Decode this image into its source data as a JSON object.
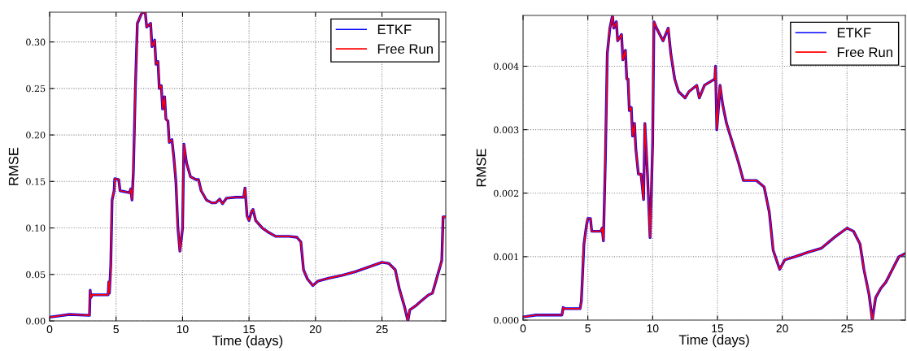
{
  "chart_data": [
    {
      "type": "line",
      "xlabel": "Time (days)",
      "ylabel": "RMSE",
      "xlim": [
        0,
        29.8
      ],
      "ylim": [
        0,
        0.332
      ],
      "xticks": [
        0,
        5,
        10,
        15,
        20,
        25
      ],
      "yticks": [
        {
          "value": 0,
          "label": "0.00"
        },
        {
          "value": 0.05,
          "label": "0.05"
        },
        {
          "value": 0.1,
          "label": "0.10"
        },
        {
          "value": 0.15,
          "label": "0.15"
        },
        {
          "value": 0.2,
          "label": "0.20"
        },
        {
          "value": 0.25,
          "label": "0.25"
        },
        {
          "value": 0.3,
          "label": "0.30"
        }
      ],
      "grid": true,
      "legend": "top right",
      "line_style": "solid",
      "x": [
        0,
        1.5,
        3,
        3.05,
        3.1,
        3.2,
        4.4,
        4.45,
        4.5,
        4.6,
        4.7,
        4.85,
        4.9,
        5.2,
        5.3,
        6.0,
        6.1,
        6.2,
        6.3,
        6.45,
        6.6,
        6.9,
        7.0,
        7.2,
        7.3,
        7.6,
        7.7,
        7.9,
        8.0,
        8.15,
        8.25,
        8.4,
        8.5,
        8.65,
        8.75,
        8.9,
        9.0,
        9.2,
        9.35,
        9.5,
        9.65,
        9.8,
        9.95,
        10.0,
        10.1,
        10.3,
        10.6,
        11.0,
        11.2,
        11.4,
        11.8,
        12.2,
        12.5,
        12.8,
        13.0,
        13.3,
        14.0,
        14.6,
        14.7,
        14.85,
        15.0,
        15.2,
        15.3,
        15.5,
        16.0,
        16.5,
        17.0,
        18.0,
        18.6,
        18.9,
        19.1,
        19.4,
        19.8,
        20.2,
        21,
        22,
        23,
        24,
        25,
        25.5,
        26,
        26.3,
        26.7,
        26.95,
        27.1,
        27.6,
        28,
        28.5,
        28.8,
        29.0,
        29.3,
        29.5,
        29.6,
        29.8
      ],
      "series": [
        {
          "name": "ETKF",
          "color": "#0000ff",
          "values": [
            0.004,
            0.007,
            0.006,
            0.033,
            0.025,
            0.028,
            0.028,
            0.042,
            0.03,
            0.06,
            0.13,
            0.14,
            0.153,
            0.152,
            0.14,
            0.138,
            0.142,
            0.13,
            0.16,
            0.25,
            0.32,
            0.33,
            0.332,
            0.331,
            0.316,
            0.32,
            0.295,
            0.302,
            0.276,
            0.279,
            0.25,
            0.253,
            0.228,
            0.241,
            0.217,
            0.215,
            0.192,
            0.195,
            0.175,
            0.15,
            0.1,
            0.075,
            0.093,
            0.1,
            0.19,
            0.17,
            0.155,
            0.152,
            0.152,
            0.14,
            0.13,
            0.127,
            0.127,
            0.131,
            0.126,
            0.132,
            0.133,
            0.133,
            0.143,
            0.113,
            0.108,
            0.118,
            0.12,
            0.108,
            0.1,
            0.095,
            0.091,
            0.091,
            0.09,
            0.085,
            0.055,
            0.045,
            0.038,
            0.043,
            0.046,
            0.049,
            0.053,
            0.058,
            0.063,
            0.062,
            0.055,
            0.035,
            0.015,
            0.0,
            0.012,
            0.017,
            0.022,
            0.028,
            0.03,
            0.04,
            0.055,
            0.065,
            0.112,
            0.112
          ]
        },
        {
          "name": "Free Run",
          "color": "#ff0000",
          "values": [
            0.004,
            0.007,
            0.006,
            0.033,
            0.025,
            0.028,
            0.028,
            0.042,
            0.03,
            0.06,
            0.13,
            0.14,
            0.153,
            0.152,
            0.14,
            0.138,
            0.142,
            0.13,
            0.16,
            0.25,
            0.32,
            0.33,
            0.332,
            0.331,
            0.316,
            0.32,
            0.295,
            0.302,
            0.276,
            0.279,
            0.25,
            0.253,
            0.228,
            0.241,
            0.217,
            0.215,
            0.192,
            0.195,
            0.175,
            0.15,
            0.1,
            0.075,
            0.093,
            0.1,
            0.19,
            0.17,
            0.155,
            0.152,
            0.152,
            0.14,
            0.13,
            0.127,
            0.127,
            0.131,
            0.126,
            0.132,
            0.133,
            0.133,
            0.143,
            0.113,
            0.108,
            0.118,
            0.12,
            0.108,
            0.1,
            0.095,
            0.091,
            0.091,
            0.09,
            0.085,
            0.055,
            0.045,
            0.038,
            0.043,
            0.046,
            0.049,
            0.053,
            0.058,
            0.063,
            0.062,
            0.055,
            0.035,
            0.015,
            0.0,
            0.012,
            0.017,
            0.022,
            0.028,
            0.03,
            0.04,
            0.055,
            0.065,
            0.112,
            0.112
          ]
        }
      ]
    },
    {
      "type": "line",
      "xlabel": "Time (days)",
      "ylabel": "RMSE",
      "xlim": [
        0,
        29.5
      ],
      "ylim": [
        0,
        0.0048
      ],
      "xticks": [
        0,
        5,
        10,
        15,
        20,
        25
      ],
      "yticks": [
        {
          "value": 0,
          "label": "0.000"
        },
        {
          "value": 0.001,
          "label": "0.001"
        },
        {
          "value": 0.002,
          "label": "0.002"
        },
        {
          "value": 0.003,
          "label": "0.003"
        },
        {
          "value": 0.004,
          "label": "0.004"
        }
      ],
      "grid": true,
      "legend": "top right",
      "line_style": "solid",
      "x": [
        0,
        1,
        3,
        3.1,
        3.2,
        4.4,
        4.5,
        4.7,
        4.9,
        5.0,
        5.2,
        5.3,
        6.0,
        6.1,
        6.2,
        6.35,
        6.5,
        6.7,
        6.9,
        7.0,
        7.2,
        7.3,
        7.6,
        7.7,
        7.9,
        8.0,
        8.1,
        8.2,
        8.35,
        8.45,
        8.6,
        8.7,
        8.9,
        9.1,
        9.3,
        9.4,
        9.6,
        9.8,
        9.9,
        10.0,
        10.1,
        10.3,
        10.8,
        11.2,
        11.4,
        11.7,
        12.0,
        12.5,
        12.8,
        13.4,
        13.6,
        14.0,
        14.8,
        14.85,
        14.95,
        15.1,
        15.2,
        15.4,
        15.7,
        16.0,
        16.3,
        16.6,
        17.0,
        18.0,
        18.6,
        19.0,
        19.3,
        19.8,
        20.2,
        21,
        22,
        23,
        24,
        25,
        25.5,
        26,
        26.3,
        26.7,
        26.95,
        27.2,
        27.6,
        28,
        28.5,
        29.0,
        29.5
      ],
      "series": [
        {
          "name": "ETKF",
          "color": "#0000ff",
          "values": [
            5e-05,
            8e-05,
            8e-05,
            0.0002,
            0.00018,
            0.00018,
            0.0003,
            0.0012,
            0.0015,
            0.0016,
            0.0016,
            0.0014,
            0.0014,
            0.00145,
            0.00125,
            0.0025,
            0.0042,
            0.0046,
            0.0048,
            0.0046,
            0.0047,
            0.0044,
            0.0045,
            0.0041,
            0.00425,
            0.0038,
            0.0038,
            0.0033,
            0.00335,
            0.0029,
            0.0031,
            0.0027,
            0.0023,
            0.0023,
            0.0019,
            0.0031,
            0.0023,
            0.0013,
            0.002,
            0.0028,
            0.0047,
            0.0046,
            0.0044,
            0.0046,
            0.0042,
            0.0038,
            0.0036,
            0.0035,
            0.0036,
            0.0037,
            0.0035,
            0.0037,
            0.0038,
            0.004,
            0.003,
            0.0034,
            0.0037,
            0.0034,
            0.0031,
            0.0029,
            0.0027,
            0.0025,
            0.0022,
            0.0022,
            0.0021,
            0.0017,
            0.0011,
            0.0008,
            0.00095,
            0.001,
            0.00107,
            0.00113,
            0.0013,
            0.00145,
            0.0014,
            0.0012,
            0.0008,
            0.0004,
            0.0,
            0.00035,
            0.0005,
            0.0006,
            0.0008,
            0.001,
            0.00105
          ]
        },
        {
          "name": "Free Run",
          "color": "#ff0000",
          "values": [
            5e-05,
            8e-05,
            8e-05,
            0.0002,
            0.00018,
            0.00018,
            0.0003,
            0.0012,
            0.0015,
            0.0016,
            0.0016,
            0.0014,
            0.0014,
            0.00145,
            0.00125,
            0.0025,
            0.0042,
            0.0046,
            0.0048,
            0.0046,
            0.0047,
            0.0044,
            0.0045,
            0.0041,
            0.00425,
            0.0038,
            0.0038,
            0.0033,
            0.00335,
            0.0029,
            0.0031,
            0.0027,
            0.0023,
            0.0023,
            0.0019,
            0.0031,
            0.0023,
            0.0013,
            0.002,
            0.0028,
            0.0047,
            0.0046,
            0.0044,
            0.0046,
            0.0042,
            0.0038,
            0.0036,
            0.0035,
            0.0036,
            0.0037,
            0.0035,
            0.0037,
            0.0038,
            0.004,
            0.003,
            0.0034,
            0.0037,
            0.0034,
            0.0031,
            0.0029,
            0.0027,
            0.0025,
            0.0022,
            0.0022,
            0.0021,
            0.0017,
            0.0011,
            0.0008,
            0.00095,
            0.001,
            0.00107,
            0.00113,
            0.0013,
            0.00145,
            0.0014,
            0.0012,
            0.0008,
            0.0004,
            0.0,
            0.00035,
            0.0005,
            0.0006,
            0.0008,
            0.001,
            0.00105
          ]
        }
      ]
    }
  ]
}
